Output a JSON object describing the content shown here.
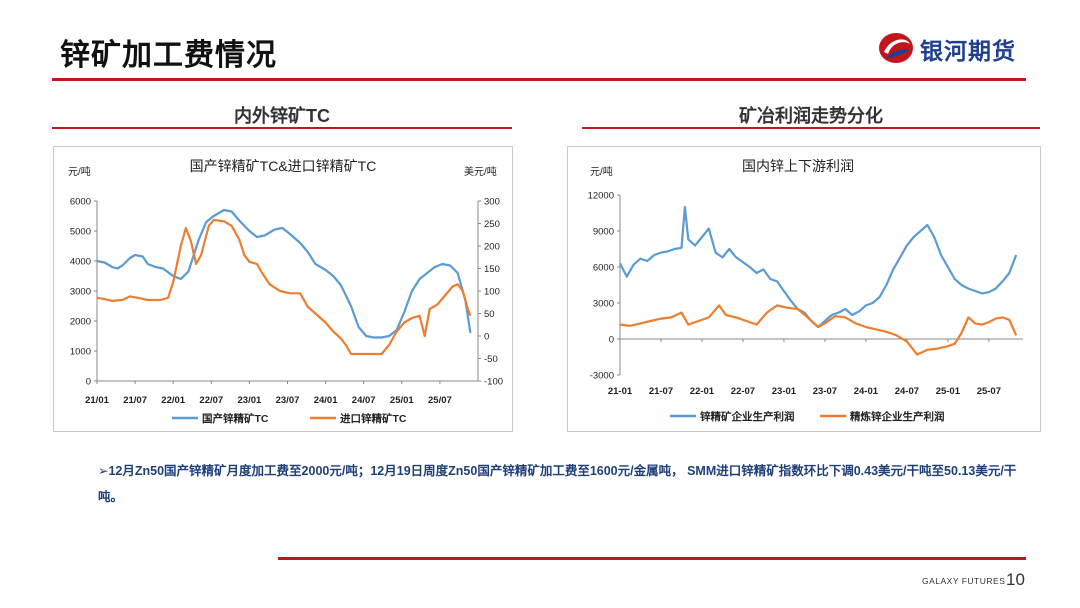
{
  "header": {
    "title": "锌矿加工费情况",
    "logo_text": "银河期货"
  },
  "left_section": {
    "title": "内外锌矿TC"
  },
  "right_section": {
    "title": "矿冶利润走势分化"
  },
  "chart_data": [
    {
      "type": "line",
      "title": "国产锌精矿TC&进口锌精矿TC",
      "ylabel": "元/吨",
      "y2label": "美元/吨",
      "ylim": [
        0,
        6000
      ],
      "y2lim": [
        -100,
        300
      ],
      "yticks": [
        "0",
        "1000",
        "2000",
        "3000",
        "4000",
        "5000",
        "6000"
      ],
      "y2ticks": [
        "-100",
        "-50",
        "0",
        "50",
        "100",
        "150",
        "200",
        "250",
        "300"
      ],
      "categories": [
        "21/01",
        "21/07",
        "22/01",
        "22/07",
        "23/01",
        "23/07",
        "24/01",
        "24/07",
        "25/01",
        "25/07"
      ],
      "series": [
        {
          "name": "国产锌精矿TC",
          "axis": "left",
          "color": "#5b9bd5",
          "points": [
            [
              0,
              4000
            ],
            [
              0.3,
              3950
            ],
            [
              0.6,
              3800
            ],
            [
              0.8,
              3750
            ],
            [
              1.0,
              3850
            ],
            [
              1.3,
              4100
            ],
            [
              1.5,
              4200
            ],
            [
              1.8,
              4150
            ],
            [
              2.0,
              3900
            ],
            [
              2.3,
              3800
            ],
            [
              2.6,
              3750
            ],
            [
              3.0,
              3500
            ],
            [
              3.3,
              3400
            ],
            [
              3.6,
              3650
            ],
            [
              4.0,
              4700
            ],
            [
              4.3,
              5300
            ],
            [
              4.6,
              5500
            ],
            [
              5.0,
              5700
            ],
            [
              5.3,
              5650
            ],
            [
              5.6,
              5350
            ],
            [
              6.0,
              5000
            ],
            [
              6.3,
              4800
            ],
            [
              6.6,
              4850
            ],
            [
              7.0,
              5050
            ],
            [
              7.3,
              5100
            ],
            [
              7.6,
              4900
            ],
            [
              8.0,
              4600
            ],
            [
              8.3,
              4300
            ],
            [
              8.6,
              3900
            ],
            [
              9.0,
              3700
            ],
            [
              9.3,
              3500
            ],
            [
              9.6,
              3200
            ],
            [
              10.0,
              2500
            ],
            [
              10.3,
              1800
            ],
            [
              10.6,
              1500
            ],
            [
              10.9,
              1450
            ],
            [
              11.2,
              1450
            ],
            [
              11.5,
              1500
            ],
            [
              11.8,
              1700
            ],
            [
              12.1,
              2300
            ],
            [
              12.4,
              3000
            ],
            [
              12.7,
              3400
            ],
            [
              13.0,
              3600
            ],
            [
              13.3,
              3800
            ],
            [
              13.6,
              3900
            ],
            [
              13.9,
              3850
            ],
            [
              14.2,
              3600
            ],
            [
              14.5,
              2700
            ],
            [
              14.7,
              1600
            ]
          ]
        },
        {
          "name": "进口锌精矿TC",
          "axis": "right",
          "color": "#ed7d31",
          "points": [
            [
              0,
              85
            ],
            [
              0.3,
              82
            ],
            [
              0.6,
              78
            ],
            [
              1.0,
              80
            ],
            [
              1.3,
              88
            ],
            [
              1.6,
              85
            ],
            [
              2.0,
              80
            ],
            [
              2.5,
              80
            ],
            [
              2.8,
              85
            ],
            [
              3.0,
              120
            ],
            [
              3.3,
              200
            ],
            [
              3.5,
              240
            ],
            [
              3.7,
              210
            ],
            [
              3.9,
              160
            ],
            [
              4.1,
              180
            ],
            [
              4.4,
              245
            ],
            [
              4.6,
              258
            ],
            [
              5.0,
              255
            ],
            [
              5.3,
              245
            ],
            [
              5.6,
              215
            ],
            [
              5.8,
              180
            ],
            [
              6.0,
              165
            ],
            [
              6.3,
              160
            ],
            [
              6.5,
              140
            ],
            [
              6.8,
              115
            ],
            [
              7.2,
              100
            ],
            [
              7.6,
              95
            ],
            [
              8.0,
              95
            ],
            [
              8.3,
              65
            ],
            [
              8.6,
              50
            ],
            [
              9.0,
              30
            ],
            [
              9.3,
              10
            ],
            [
              9.6,
              -5
            ],
            [
              9.8,
              -20
            ],
            [
              10.0,
              -40
            ],
            [
              10.4,
              -40
            ],
            [
              10.8,
              -40
            ],
            [
              11.2,
              -40
            ],
            [
              11.5,
              -20
            ],
            [
              11.8,
              10
            ],
            [
              12.1,
              30
            ],
            [
              12.4,
              40
            ],
            [
              12.7,
              45
            ],
            [
              12.9,
              0
            ],
            [
              13.1,
              60
            ],
            [
              13.4,
              70
            ],
            [
              13.7,
              90
            ],
            [
              14.0,
              110
            ],
            [
              14.2,
              115
            ],
            [
              14.4,
              100
            ],
            [
              14.6,
              60
            ],
            [
              14.7,
              45
            ]
          ]
        }
      ]
    },
    {
      "type": "line",
      "title": "国内锌上下游利润",
      "ylabel": "元/吨",
      "ylim": [
        -3000,
        12000
      ],
      "yticks": [
        "-3000",
        "0",
        "3000",
        "6000",
        "9000",
        "12000"
      ],
      "categories": [
        "21-01",
        "21-07",
        "22-01",
        "22-07",
        "23-01",
        "23-07",
        "24-01",
        "24-07",
        "25-01",
        "25-07"
      ],
      "series": [
        {
          "name": "锌精矿企业生产利润",
          "color": "#5b9bd5",
          "points": [
            [
              0,
              6300
            ],
            [
              0.2,
              5200
            ],
            [
              0.4,
              6200
            ],
            [
              0.6,
              6700
            ],
            [
              0.8,
              6500
            ],
            [
              1.0,
              7000
            ],
            [
              1.2,
              7200
            ],
            [
              1.4,
              7300
            ],
            [
              1.6,
              7500
            ],
            [
              1.8,
              7600
            ],
            [
              1.9,
              11000
            ],
            [
              2.0,
              8300
            ],
            [
              2.2,
              7800
            ],
            [
              2.4,
              8500
            ],
            [
              2.6,
              9200
            ],
            [
              2.8,
              7200
            ],
            [
              3.0,
              6800
            ],
            [
              3.2,
              7500
            ],
            [
              3.4,
              6800
            ],
            [
              3.6,
              6400
            ],
            [
              3.8,
              6000
            ],
            [
              4.0,
              5500
            ],
            [
              4.2,
              5800
            ],
            [
              4.4,
              5000
            ],
            [
              4.6,
              4800
            ],
            [
              4.8,
              4000
            ],
            [
              5.0,
              3200
            ],
            [
              5.2,
              2500
            ],
            [
              5.4,
              2200
            ],
            [
              5.6,
              1500
            ],
            [
              5.8,
              1000
            ],
            [
              6.0,
              1500
            ],
            [
              6.2,
              2000
            ],
            [
              6.4,
              2200
            ],
            [
              6.6,
              2500
            ],
            [
              6.8,
              2000
            ],
            [
              7.0,
              2300
            ],
            [
              7.2,
              2800
            ],
            [
              7.4,
              3000
            ],
            [
              7.6,
              3500
            ],
            [
              7.8,
              4500
            ],
            [
              8.0,
              5800
            ],
            [
              8.2,
              6800
            ],
            [
              8.4,
              7800
            ],
            [
              8.6,
              8500
            ],
            [
              8.8,
              9000
            ],
            [
              9.0,
              9500
            ],
            [
              9.2,
              8500
            ],
            [
              9.4,
              7000
            ],
            [
              9.6,
              6000
            ],
            [
              9.8,
              5000
            ],
            [
              10.0,
              4500
            ],
            [
              10.2,
              4200
            ],
            [
              10.4,
              4000
            ],
            [
              10.6,
              3800
            ],
            [
              10.8,
              3900
            ],
            [
              11.0,
              4200
            ],
            [
              11.2,
              4800
            ],
            [
              11.4,
              5500
            ],
            [
              11.6,
              7000
            ]
          ]
        },
        {
          "name": "精炼锌企业生产利润",
          "color": "#ed7d31",
          "points": [
            [
              0,
              1200
            ],
            [
              0.3,
              1100
            ],
            [
              0.6,
              1300
            ],
            [
              0.9,
              1500
            ],
            [
              1.2,
              1700
            ],
            [
              1.5,
              1800
            ],
            [
              1.8,
              2200
            ],
            [
              2.0,
              1200
            ],
            [
              2.3,
              1500
            ],
            [
              2.6,
              1800
            ],
            [
              2.9,
              2800
            ],
            [
              3.1,
              2000
            ],
            [
              3.4,
              1800
            ],
            [
              3.7,
              1500
            ],
            [
              4.0,
              1200
            ],
            [
              4.3,
              2200
            ],
            [
              4.6,
              2800
            ],
            [
              4.9,
              2600
            ],
            [
              5.2,
              2500
            ],
            [
              5.5,
              1800
            ],
            [
              5.8,
              1000
            ],
            [
              6.0,
              1300
            ],
            [
              6.3,
              1900
            ],
            [
              6.6,
              1800
            ],
            [
              6.9,
              1300
            ],
            [
              7.2,
              1000
            ],
            [
              7.5,
              800
            ],
            [
              7.8,
              600
            ],
            [
              8.1,
              300
            ],
            [
              8.4,
              -200
            ],
            [
              8.7,
              -1300
            ],
            [
              9.0,
              -900
            ],
            [
              9.3,
              -800
            ],
            [
              9.6,
              -600
            ],
            [
              9.8,
              -400
            ],
            [
              10.0,
              500
            ],
            [
              10.2,
              1800
            ],
            [
              10.4,
              1300
            ],
            [
              10.6,
              1200
            ],
            [
              10.8,
              1400
            ],
            [
              11.0,
              1700
            ],
            [
              11.2,
              1800
            ],
            [
              11.4,
              1600
            ],
            [
              11.6,
              300
            ]
          ]
        }
      ]
    }
  ],
  "note": "➢12月Zn50国产锌精矿月度加工费至2000元/吨；12月19日周度Zn50国产锌精矿加工费至1600元/金属吨，  SMM进口锌精矿指数环比下调0.43美元/干吨至50.13美元/干吨。",
  "footer": {
    "brand": "GALAXY FUTURES",
    "page": "10"
  }
}
